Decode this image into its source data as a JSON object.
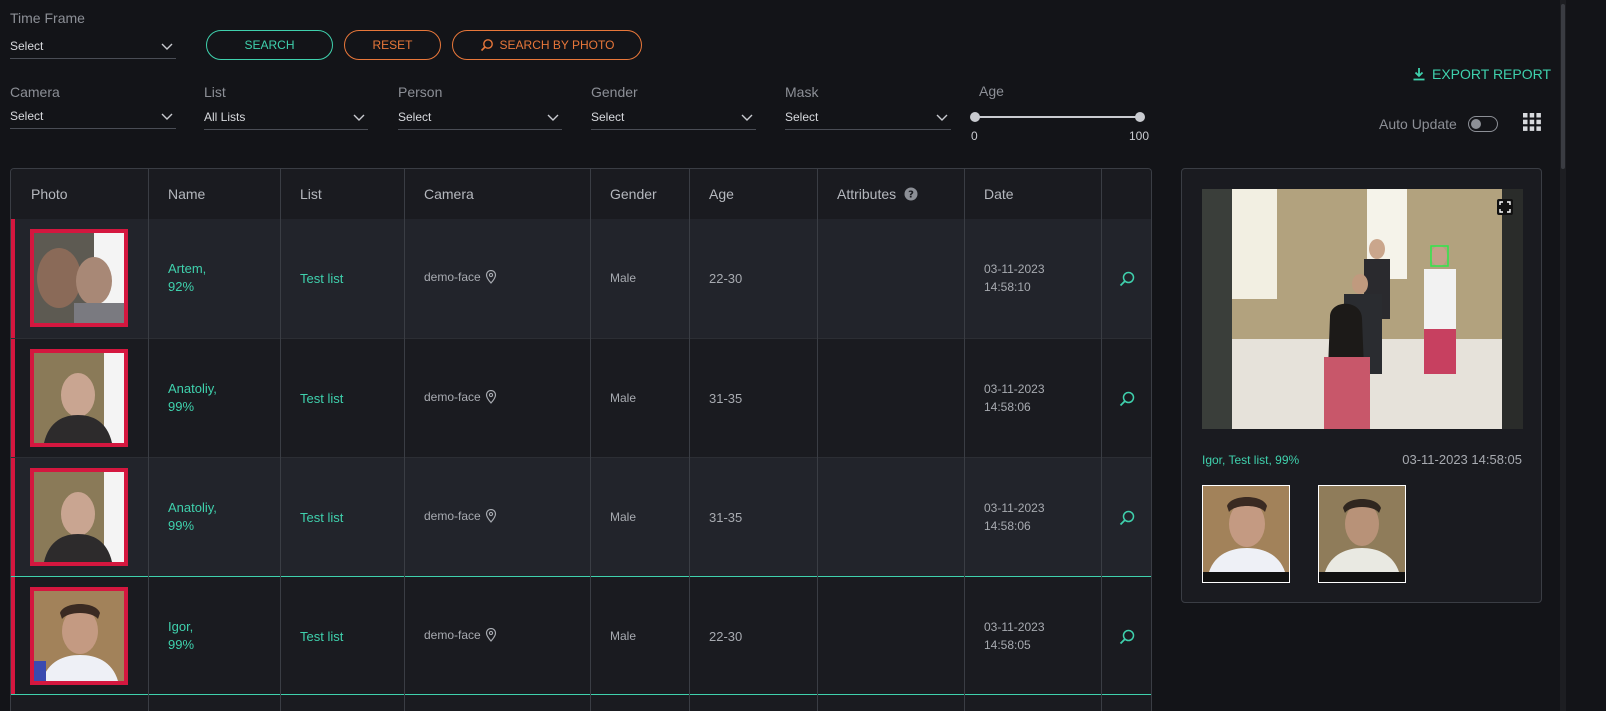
{
  "filters": {
    "time_frame": {
      "label": "Time Frame",
      "value": "Select"
    },
    "camera": {
      "label": "Camera",
      "value": "Select"
    },
    "list": {
      "label": "List",
      "value": "All Lists"
    },
    "person": {
      "label": "Person",
      "value": "Select"
    },
    "gender": {
      "label": "Gender",
      "value": "Select"
    },
    "mask": {
      "label": "Mask",
      "value": "Select"
    },
    "age": {
      "label": "Age",
      "min": "0",
      "max": "100"
    }
  },
  "buttons": {
    "search": "SEARCH",
    "reset": "RESET",
    "search_by_photo": "SEARCH BY PHOTO",
    "export_report": "EXPORT REPORT"
  },
  "auto_update": {
    "label": "Auto Update",
    "enabled": false
  },
  "table": {
    "headers": {
      "photo": "Photo",
      "name": "Name",
      "list": "List",
      "camera": "Camera",
      "gender": "Gender",
      "age": "Age",
      "attributes": "Attributes",
      "date": "Date"
    },
    "rows": [
      {
        "name": "Artem,",
        "score": "92%",
        "list": "Test list",
        "camera": "demo-face",
        "gender": "Male",
        "age": "22-30",
        "date": "03-11-2023",
        "time": "14:58:10"
      },
      {
        "name": "Anatoliy,",
        "score": "99%",
        "list": "Test list",
        "camera": "demo-face",
        "gender": "Male",
        "age": "31-35",
        "date": "03-11-2023",
        "time": "14:58:06"
      },
      {
        "name": "Anatoliy,",
        "score": "99%",
        "list": "Test list",
        "camera": "demo-face",
        "gender": "Male",
        "age": "31-35",
        "date": "03-11-2023",
        "time": "14:58:06"
      },
      {
        "name": "Igor,",
        "score": "99%",
        "list": "Test list",
        "camera": "demo-face",
        "gender": "Male",
        "age": "22-30",
        "date": "03-11-2023",
        "time": "14:58:05"
      }
    ]
  },
  "detail": {
    "caption": "Igor, Test list, 99%",
    "timestamp": "03-11-2023 14:58:05"
  },
  "colors": {
    "accent": "#3fd1ad",
    "warning": "#e8773a",
    "alert": "#d4173f"
  }
}
